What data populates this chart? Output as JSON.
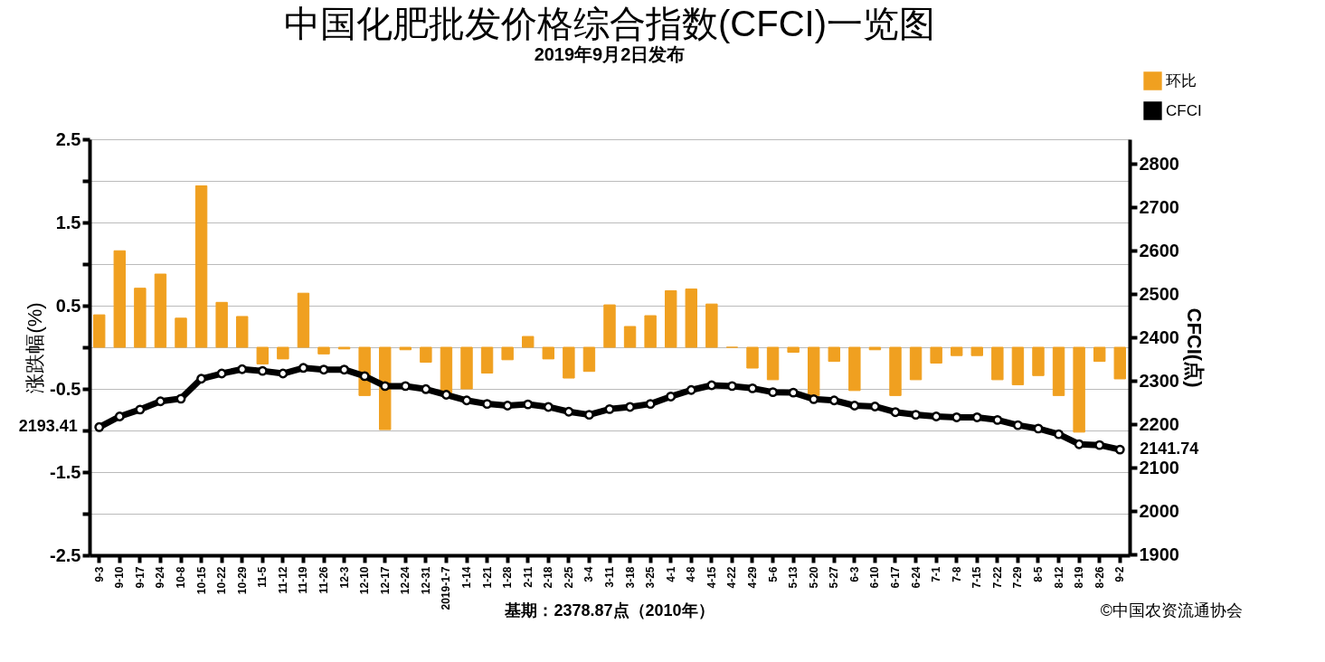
{
  "chart_data": {
    "type": "bar",
    "title": "中国化肥批发价格综合指数(CFCI)一览图",
    "subtitle": "2019年9月2日发布",
    "ylabel": "涨跌幅(%)",
    "y2label": "CFCI(点)",
    "categories": [
      "9-3",
      "9-10",
      "9-17",
      "9-24",
      "10-8",
      "10-15",
      "10-22",
      "10-29",
      "11-5",
      "11-12",
      "11-19",
      "11-26",
      "12-3",
      "12-10",
      "12-17",
      "12-24",
      "12-31",
      "2019-1-7",
      "1-14",
      "1-21",
      "1-28",
      "2-11",
      "2-18",
      "2-25",
      "3-4",
      "3-11",
      "3-18",
      "3-25",
      "4-1",
      "4-8",
      "4-15",
      "4-22",
      "4-29",
      "5-6",
      "5-13",
      "5-20",
      "5-27",
      "6-3",
      "6-10",
      "6-17",
      "6-24",
      "7-1",
      "7-8",
      "7-15",
      "7-22",
      "7-29",
      "8-5",
      "8-12",
      "8-19",
      "8-26",
      "9-2"
    ],
    "series": [
      {
        "name": "环比",
        "color": "#f0a020",
        "values": [
          0.39,
          1.16,
          0.71,
          0.88,
          0.35,
          1.94,
          0.54,
          0.37,
          -0.2,
          -0.14,
          0.65,
          -0.08,
          -0.02,
          -0.58,
          -0.99,
          -0.03,
          -0.18,
          -0.55,
          -0.5,
          -0.31,
          -0.15,
          0.13,
          -0.14,
          -0.37,
          -0.29,
          0.51,
          0.25,
          0.38,
          0.68,
          0.7,
          0.52,
          0,
          -0.25,
          -0.39,
          -0.06,
          -0.58,
          -0.17,
          -0.52,
          -0.03,
          -0.58,
          -0.39,
          -0.19,
          -0.1,
          -0.1,
          -0.39,
          -0.45,
          -0.34,
          -0.58,
          -1.02,
          -0.17,
          -0.38
        ]
      },
      {
        "name": "CFCI",
        "type": "line",
        "axis": "y2",
        "color": "#000000",
        "values": [
          2193.41,
          2218,
          2234,
          2253,
          2259,
          2305,
          2317,
          2327,
          2323,
          2317,
          2330,
          2326,
          2326,
          2311,
          2288,
          2288,
          2281,
          2268,
          2255,
          2247,
          2243,
          2246,
          2240,
          2229,
          2222,
          2235,
          2240,
          2247,
          2264,
          2279,
          2290,
          2288,
          2283,
          2274,
          2273,
          2258,
          2255,
          2243,
          2241,
          2228,
          2222,
          2218,
          2216,
          2216,
          2210,
          2198,
          2190,
          2177,
          2154,
          2152,
          2141.74
        ],
        "value_labels": [
          "2193.41",
          null,
          null,
          null,
          null,
          null,
          null,
          null,
          null,
          null,
          null,
          null,
          null,
          null,
          null,
          null,
          null,
          null,
          null,
          null,
          null,
          null,
          null,
          null,
          null,
          null,
          null,
          null,
          null,
          null,
          null,
          null,
          null,
          null,
          null,
          null,
          null,
          null,
          null,
          null,
          null,
          null,
          null,
          null,
          null,
          null,
          null,
          null,
          null,
          null,
          "2141.74"
        ]
      }
    ],
    "ylim": [
      -2.5,
      2.5
    ],
    "yticks": [
      -2.5,
      {
        "value": -2,
        "label": null
      },
      -1.5,
      {
        "value": -1,
        "label": null
      },
      -0.5,
      {
        "value": 0,
        "label": null
      },
      0.5,
      {
        "value": 1,
        "label": null
      },
      1.5,
      {
        "value": 2,
        "label": null
      },
      2.5
    ],
    "y2lim": [
      1898,
      2857
    ],
    "y2ticks": [
      1900,
      2000,
      2100,
      2200,
      2300,
      2400,
      2500,
      2600,
      2700,
      2800
    ],
    "grid": "y",
    "legend": "top right",
    "marker": "circle",
    "line_style": "solid",
    "annotations": [
      "基期：2378.87点（2010年）",
      "©中国农资流通协会"
    ]
  }
}
